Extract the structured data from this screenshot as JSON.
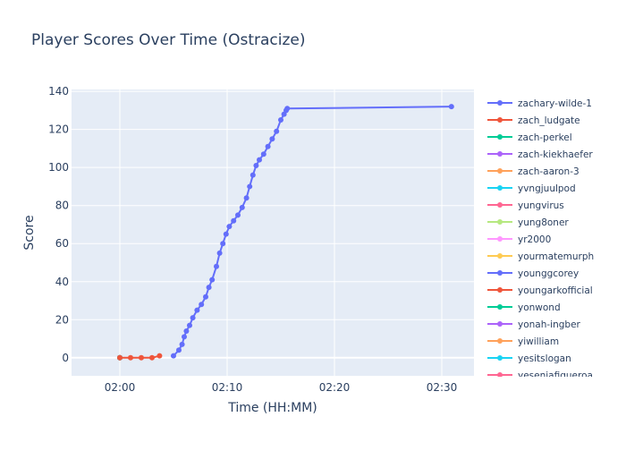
{
  "chart_data": {
    "type": "line",
    "title": "Player Scores Over Time (Ostracize)",
    "xlabel": "Time (HH:MM)",
    "ylabel": "Score",
    "x_unit": "minutes after 02:00",
    "xlim": [
      -4.5,
      33.0
    ],
    "ylim": [
      -9.5,
      141
    ],
    "xticks": [
      {
        "value": 0,
        "label": "02:00"
      },
      {
        "value": 10,
        "label": "02:10"
      },
      {
        "value": 20,
        "label": "02:20"
      },
      {
        "value": 30,
        "label": "02:30"
      }
    ],
    "yticks": [
      0,
      20,
      40,
      60,
      80,
      100,
      120,
      140
    ],
    "grid": true,
    "legend_position": "right",
    "legend_entries": [
      {
        "name": "zachary-wilde-1",
        "color": "#636efa"
      },
      {
        "name": "zach_ludgate",
        "color": "#EF553B"
      },
      {
        "name": "zach-perkel",
        "color": "#00cc96"
      },
      {
        "name": "zach-kiekhaefer",
        "color": "#ab63fa"
      },
      {
        "name": "zach-aaron-3",
        "color": "#FFA15A"
      },
      {
        "name": "yvngjuulpod",
        "color": "#19d3f3"
      },
      {
        "name": "yungvirus",
        "color": "#FF6692"
      },
      {
        "name": "yung8oner",
        "color": "#B6E880"
      },
      {
        "name": "yr2000",
        "color": "#FF97FF"
      },
      {
        "name": "yourmatemurph",
        "color": "#FECB52"
      },
      {
        "name": "younggcorey",
        "color": "#636efa"
      },
      {
        "name": "youngarkofficial",
        "color": "#EF553B"
      },
      {
        "name": "yonwond",
        "color": "#00cc96"
      },
      {
        "name": "yonah-ingber",
        "color": "#ab63fa"
      },
      {
        "name": "yiwilliam",
        "color": "#FFA15A"
      },
      {
        "name": "yesitslogan",
        "color": "#19d3f3"
      },
      {
        "name": "yeseniafigueroa",
        "color": "#FF6692"
      }
    ],
    "series": [
      {
        "name": "zachary-wilde-1",
        "color": "#636efa",
        "x": [
          5.0,
          5.5,
          5.8,
          6.0,
          6.2,
          6.5,
          6.8,
          7.2,
          7.6,
          8.0,
          8.3,
          8.6,
          9.0,
          9.3,
          9.6,
          9.9,
          10.2,
          10.6,
          11.0,
          11.4,
          11.8,
          12.1,
          12.4,
          12.7,
          13.0,
          13.4,
          13.8,
          14.2,
          14.6,
          15.0,
          15.3,
          15.5,
          15.6,
          30.9
        ],
        "y": [
          1,
          4,
          7,
          11,
          14,
          17,
          21,
          25,
          28,
          32,
          37,
          41,
          48,
          55,
          60,
          65,
          69,
          72,
          75,
          79,
          84,
          90,
          96,
          101,
          104,
          107,
          111,
          115,
          119,
          125,
          128,
          130,
          131,
          132
        ]
      },
      {
        "name": "zach_ludgate",
        "color": "#EF553B",
        "x": [
          0.0,
          1.0,
          2.0,
          3.0,
          3.7
        ],
        "y": [
          0,
          0,
          0,
          0,
          1
        ]
      },
      {
        "name": "zach-perkel",
        "color": "#00cc96",
        "x": [
          0.0
        ],
        "y": [
          0
        ]
      },
      {
        "name": "zach-kiekhaefer",
        "color": "#ab63fa",
        "x": [
          0.0
        ],
        "y": [
          0
        ]
      },
      {
        "name": "zach-aaron-3",
        "color": "#FFA15A",
        "x": [
          0.0
        ],
        "y": [
          0
        ]
      },
      {
        "name": "yvngjuulpod",
        "color": "#19d3f3",
        "x": [
          0.0
        ],
        "y": [
          0
        ]
      },
      {
        "name": "yungvirus",
        "color": "#FF6692",
        "x": [
          0.0
        ],
        "y": [
          0
        ]
      },
      {
        "name": "yung8oner",
        "color": "#B6E880",
        "x": [
          0.0
        ],
        "y": [
          0
        ]
      },
      {
        "name": "yr2000",
        "color": "#FF97FF",
        "x": [
          0.0
        ],
        "y": [
          0
        ]
      },
      {
        "name": "yourmatemurph",
        "color": "#FECB52",
        "x": [
          0.0
        ],
        "y": [
          0
        ]
      }
    ]
  }
}
